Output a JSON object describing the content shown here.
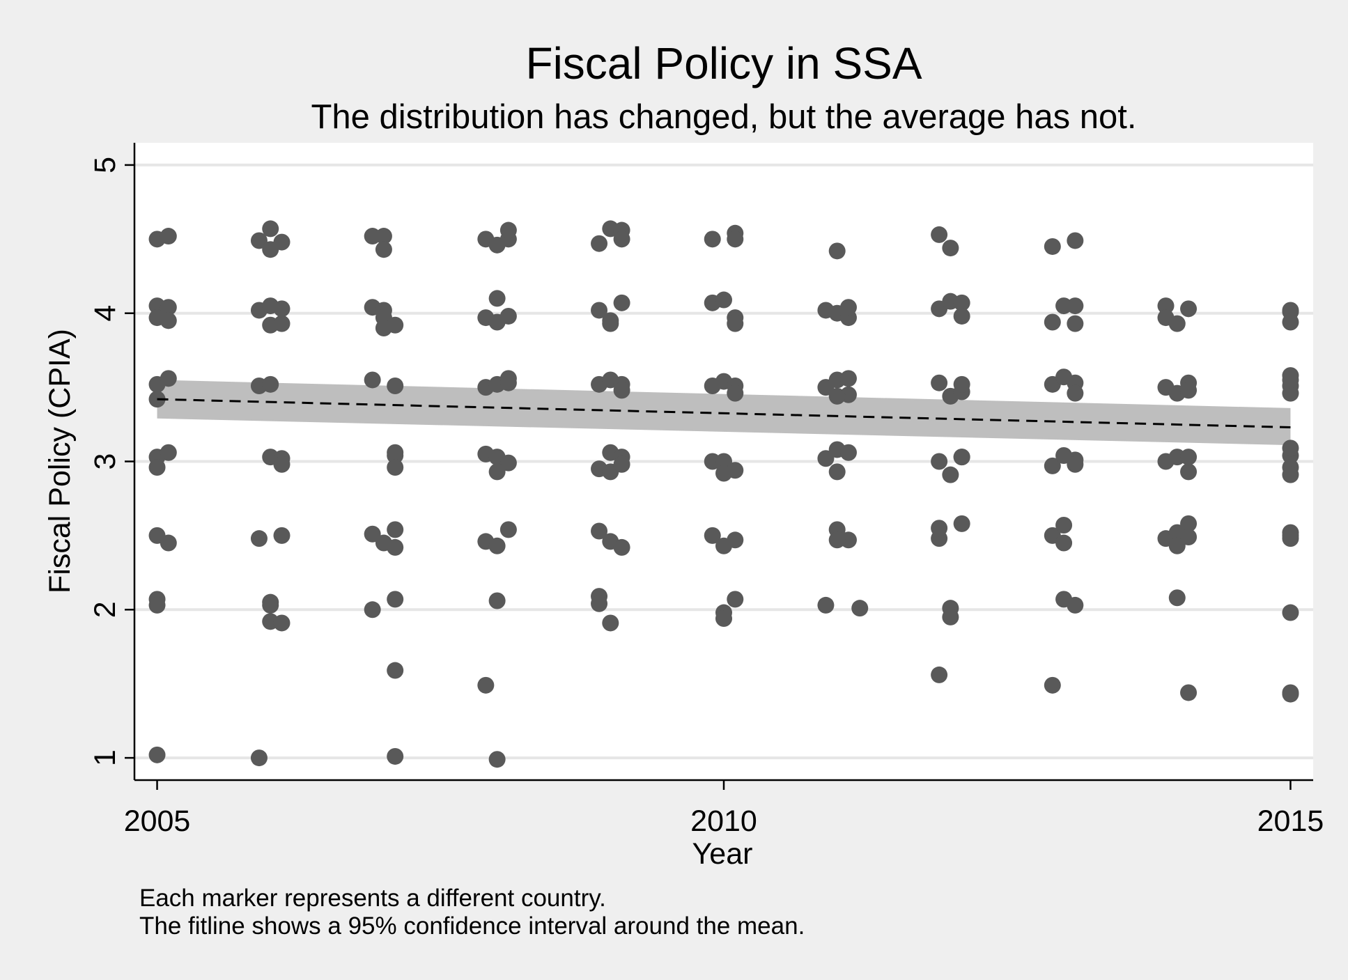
{
  "chart_data": {
    "type": "scatter",
    "title": "Fiscal Policy in SSA",
    "subtitle": "The distribution has changed, but the average has not.",
    "xlabel": "Year",
    "ylabel": "Fiscal Policy (CPIA)",
    "xlim": [
      2004.8,
      2015.2
    ],
    "ylim": [
      0.85,
      5.15
    ],
    "x_ticks": [
      2005,
      2010,
      2015
    ],
    "y_ticks": [
      1,
      2,
      3,
      4,
      5
    ],
    "grid": true,
    "legend": "none",
    "colors": {
      "marker": "#595959",
      "ci_band": "#bebebe",
      "fitline": "#000000",
      "grid": "#e6e6e6",
      "plot_bg": "#ffffff",
      "page_bg": "#efefef"
    },
    "fitline": {
      "style": "dashed",
      "x": [
        2005,
        2015
      ],
      "y": [
        3.42,
        3.23
      ],
      "ci_lower": [
        3.29,
        3.11
      ],
      "ci_upper": [
        3.55,
        3.36
      ]
    },
    "points": [
      [
        2005.0,
        4.5
      ],
      [
        2005.1,
        4.52
      ],
      [
        2005.0,
        4.05
      ],
      [
        2005.1,
        4.04
      ],
      [
        2005.0,
        3.97
      ],
      [
        2005.1,
        3.95
      ],
      [
        2005.0,
        3.52
      ],
      [
        2005.1,
        3.56
      ],
      [
        2005.0,
        3.42
      ],
      [
        2005.0,
        3.03
      ],
      [
        2005.1,
        3.06
      ],
      [
        2005.0,
        2.96
      ],
      [
        2005.0,
        2.5
      ],
      [
        2005.1,
        2.45
      ],
      [
        2005.0,
        2.07
      ],
      [
        2005.0,
        2.03
      ],
      [
        2005.0,
        1.02
      ],
      [
        2005.9,
        4.49
      ],
      [
        2006.0,
        4.57
      ],
      [
        2006.0,
        4.43
      ],
      [
        2006.1,
        4.48
      ],
      [
        2005.9,
        4.02
      ],
      [
        2006.0,
        4.05
      ],
      [
        2006.0,
        3.92
      ],
      [
        2006.1,
        3.93
      ],
      [
        2006.1,
        4.03
      ],
      [
        2005.9,
        3.51
      ],
      [
        2006.0,
        3.52
      ],
      [
        2006.0,
        3.03
      ],
      [
        2006.1,
        3.02
      ],
      [
        2006.1,
        2.98
      ],
      [
        2005.9,
        2.48
      ],
      [
        2006.1,
        2.5
      ],
      [
        2006.0,
        2.05
      ],
      [
        2006.0,
        2.03
      ],
      [
        2006.0,
        1.92
      ],
      [
        2006.1,
        1.91
      ],
      [
        2005.9,
        1.0
      ],
      [
        2006.9,
        4.52
      ],
      [
        2007.0,
        4.52
      ],
      [
        2007.0,
        4.43
      ],
      [
        2006.9,
        4.04
      ],
      [
        2007.0,
        4.02
      ],
      [
        2007.0,
        3.97
      ],
      [
        2007.0,
        3.9
      ],
      [
        2007.1,
        3.92
      ],
      [
        2006.9,
        3.55
      ],
      [
        2007.1,
        3.51
      ],
      [
        2007.1,
        3.06
      ],
      [
        2007.1,
        3.04
      ],
      [
        2007.1,
        2.96
      ],
      [
        2006.9,
        2.51
      ],
      [
        2007.0,
        2.45
      ],
      [
        2007.1,
        2.42
      ],
      [
        2007.1,
        2.54
      ],
      [
        2006.9,
        2.0
      ],
      [
        2007.1,
        2.07
      ],
      [
        2007.1,
        1.59
      ],
      [
        2007.1,
        1.01
      ],
      [
        2007.9,
        4.5
      ],
      [
        2008.0,
        4.46
      ],
      [
        2008.1,
        4.5
      ],
      [
        2008.1,
        4.56
      ],
      [
        2007.9,
        3.97
      ],
      [
        2008.0,
        3.94
      ],
      [
        2008.0,
        4.1
      ],
      [
        2008.1,
        3.98
      ],
      [
        2007.9,
        3.5
      ],
      [
        2008.0,
        3.52
      ],
      [
        2008.1,
        3.56
      ],
      [
        2008.1,
        3.53
      ],
      [
        2007.9,
        3.05
      ],
      [
        2008.0,
        3.03
      ],
      [
        2008.1,
        2.99
      ],
      [
        2008.0,
        2.93
      ],
      [
        2007.9,
        2.46
      ],
      [
        2008.0,
        2.43
      ],
      [
        2008.1,
        2.54
      ],
      [
        2008.0,
        2.06
      ],
      [
        2007.9,
        1.49
      ],
      [
        2008.0,
        0.99
      ],
      [
        2008.9,
        4.47
      ],
      [
        2009.0,
        4.57
      ],
      [
        2009.1,
        4.56
      ],
      [
        2009.1,
        4.5
      ],
      [
        2008.9,
        4.02
      ],
      [
        2009.0,
        3.95
      ],
      [
        2009.1,
        4.07
      ],
      [
        2009.0,
        3.93
      ],
      [
        2008.9,
        3.52
      ],
      [
        2009.0,
        3.55
      ],
      [
        2009.1,
        3.52
      ],
      [
        2009.1,
        3.48
      ],
      [
        2009.0,
        3.06
      ],
      [
        2009.1,
        3.03
      ],
      [
        2008.9,
        2.95
      ],
      [
        2009.0,
        2.93
      ],
      [
        2009.1,
        2.98
      ],
      [
        2008.9,
        2.53
      ],
      [
        2009.0,
        2.46
      ],
      [
        2009.1,
        2.42
      ],
      [
        2008.9,
        2.09
      ],
      [
        2008.9,
        2.04
      ],
      [
        2009.0,
        1.91
      ],
      [
        2009.9,
        4.5
      ],
      [
        2010.1,
        4.54
      ],
      [
        2010.1,
        4.5
      ],
      [
        2009.9,
        4.07
      ],
      [
        2010.0,
        4.09
      ],
      [
        2010.1,
        3.97
      ],
      [
        2010.1,
        3.93
      ],
      [
        2009.9,
        3.51
      ],
      [
        2010.0,
        3.54
      ],
      [
        2010.1,
        3.51
      ],
      [
        2010.1,
        3.46
      ],
      [
        2009.9,
        3.0
      ],
      [
        2010.0,
        3.0
      ],
      [
        2010.0,
        2.92
      ],
      [
        2010.1,
        2.94
      ],
      [
        2009.9,
        2.5
      ],
      [
        2010.0,
        2.43
      ],
      [
        2010.1,
        2.47
      ],
      [
        2010.1,
        2.07
      ],
      [
        2010.0,
        1.98
      ],
      [
        2010.0,
        1.94
      ],
      [
        2011.0,
        4.42
      ],
      [
        2010.9,
        4.02
      ],
      [
        2011.0,
        4.0
      ],
      [
        2011.1,
        3.97
      ],
      [
        2011.1,
        4.04
      ],
      [
        2010.9,
        3.5
      ],
      [
        2011.0,
        3.55
      ],
      [
        2011.1,
        3.56
      ],
      [
        2011.1,
        3.45
      ],
      [
        2011.0,
        3.44
      ],
      [
        2010.9,
        3.02
      ],
      [
        2011.0,
        3.08
      ],
      [
        2011.1,
        3.06
      ],
      [
        2011.0,
        2.93
      ],
      [
        2011.0,
        2.54
      ],
      [
        2011.1,
        2.47
      ],
      [
        2011.0,
        2.47
      ],
      [
        2010.9,
        2.03
      ],
      [
        2011.2,
        2.01
      ],
      [
        2011.9,
        4.53
      ],
      [
        2012.0,
        4.44
      ],
      [
        2011.9,
        4.03
      ],
      [
        2012.0,
        4.08
      ],
      [
        2012.1,
        4.07
      ],
      [
        2012.1,
        3.98
      ],
      [
        2011.9,
        3.53
      ],
      [
        2012.0,
        3.44
      ],
      [
        2012.1,
        3.47
      ],
      [
        2012.1,
        3.52
      ],
      [
        2011.9,
        3.0
      ],
      [
        2012.0,
        2.91
      ],
      [
        2012.1,
        3.03
      ],
      [
        2012.1,
        3.03
      ],
      [
        2011.9,
        2.48
      ],
      [
        2011.9,
        2.55
      ],
      [
        2012.1,
        2.58
      ],
      [
        2012.0,
        2.01
      ],
      [
        2012.0,
        1.95
      ],
      [
        2011.9,
        1.56
      ],
      [
        2012.9,
        4.45
      ],
      [
        2013.1,
        4.49
      ],
      [
        2012.9,
        3.94
      ],
      [
        2013.0,
        4.05
      ],
      [
        2013.1,
        4.05
      ],
      [
        2013.1,
        3.93
      ],
      [
        2012.9,
        3.52
      ],
      [
        2013.0,
        3.57
      ],
      [
        2013.1,
        3.53
      ],
      [
        2013.1,
        3.46
      ],
      [
        2012.9,
        2.97
      ],
      [
        2013.0,
        3.04
      ],
      [
        2013.1,
        3.01
      ],
      [
        2013.1,
        2.98
      ],
      [
        2012.9,
        2.5
      ],
      [
        2013.0,
        2.57
      ],
      [
        2013.0,
        2.45
      ],
      [
        2013.0,
        2.07
      ],
      [
        2013.1,
        2.03
      ],
      [
        2012.9,
        1.49
      ],
      [
        2013.9,
        4.05
      ],
      [
        2013.9,
        3.97
      ],
      [
        2014.0,
        3.93
      ],
      [
        2014.1,
        4.03
      ],
      [
        2013.9,
        3.5
      ],
      [
        2014.0,
        3.46
      ],
      [
        2014.1,
        3.53
      ],
      [
        2014.1,
        3.48
      ],
      [
        2013.9,
        3.0
      ],
      [
        2014.0,
        3.03
      ],
      [
        2014.1,
        2.93
      ],
      [
        2014.1,
        3.03
      ],
      [
        2013.9,
        2.48
      ],
      [
        2014.0,
        2.52
      ],
      [
        2014.0,
        2.43
      ],
      [
        2014.1,
        2.58
      ],
      [
        2014.1,
        2.49
      ],
      [
        2014.0,
        2.08
      ],
      [
        2014.1,
        1.44
      ],
      [
        2015.0,
        4.01
      ],
      [
        2015.0,
        4.02
      ],
      [
        2015.0,
        3.94
      ],
      [
        2015.0,
        3.51
      ],
      [
        2015.0,
        3.58
      ],
      [
        2015.0,
        3.46
      ],
      [
        2015.0,
        3.55
      ],
      [
        2015.0,
        3.04
      ],
      [
        2015.0,
        3.09
      ],
      [
        2015.0,
        2.96
      ],
      [
        2015.0,
        2.91
      ],
      [
        2015.0,
        2.52
      ],
      [
        2015.0,
        2.48
      ],
      [
        2015.0,
        2.5
      ],
      [
        2015.0,
        1.98
      ],
      [
        2015.0,
        1.44
      ],
      [
        2015.0,
        1.43
      ]
    ]
  },
  "notes": [
    "Each marker represents a different country.",
    "The fitline shows a 95% confidence interval around the mean."
  ]
}
